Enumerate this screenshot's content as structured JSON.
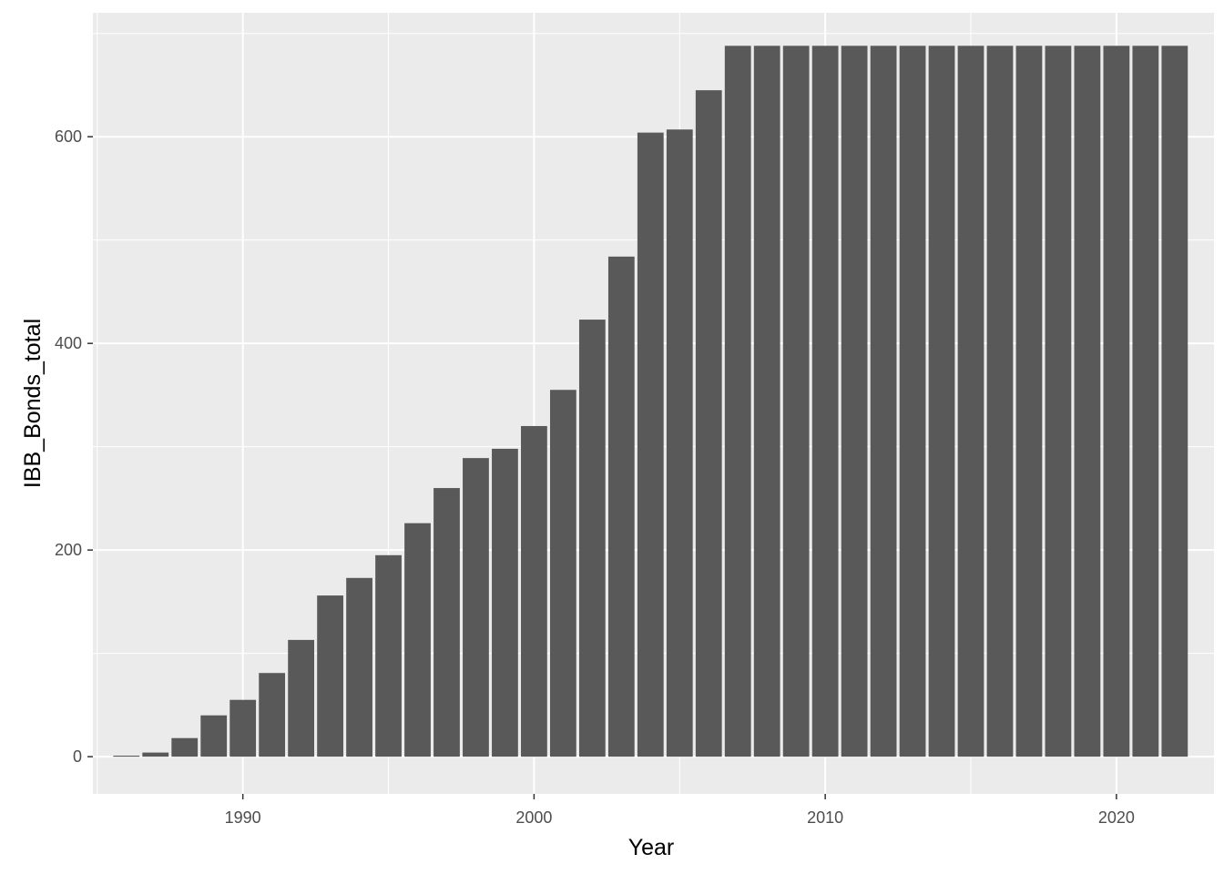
{
  "chart_data": {
    "type": "bar",
    "xlabel": "Year",
    "ylabel": "IBB_Bonds_total",
    "xlim": [
      1984.85,
      2023.35
    ],
    "ylim": [
      -36,
      720
    ],
    "x_ticks": [
      1990,
      2000,
      2010,
      2020
    ],
    "x_minor_ticks": [
      1985,
      1995,
      2005,
      2015
    ],
    "y_ticks": [
      0,
      200,
      400,
      600
    ],
    "y_minor_ticks": [
      100,
      300,
      500,
      700
    ],
    "grid": true,
    "legend": "none",
    "colors": {
      "panel": "#ebebeb",
      "grid": "#ffffff",
      "bar": "#595959"
    },
    "categories": [
      1986,
      1987,
      1988,
      1989,
      1990,
      1991,
      1992,
      1993,
      1994,
      1995,
      1996,
      1997,
      1998,
      1999,
      2000,
      2001,
      2002,
      2003,
      2004,
      2005,
      2006,
      2007,
      2008,
      2009,
      2010,
      2011,
      2012,
      2013,
      2014,
      2015,
      2016,
      2017,
      2018,
      2019,
      2020,
      2021,
      2022
    ],
    "values": [
      1,
      4,
      18,
      40,
      55,
      81,
      113,
      156,
      173,
      195,
      226,
      260,
      289,
      298,
      320,
      355,
      423,
      484,
      604,
      607,
      645,
      688,
      688,
      688,
      688,
      688,
      688,
      688,
      688,
      688,
      688,
      688,
      688,
      688,
      688,
      688,
      688
    ]
  }
}
